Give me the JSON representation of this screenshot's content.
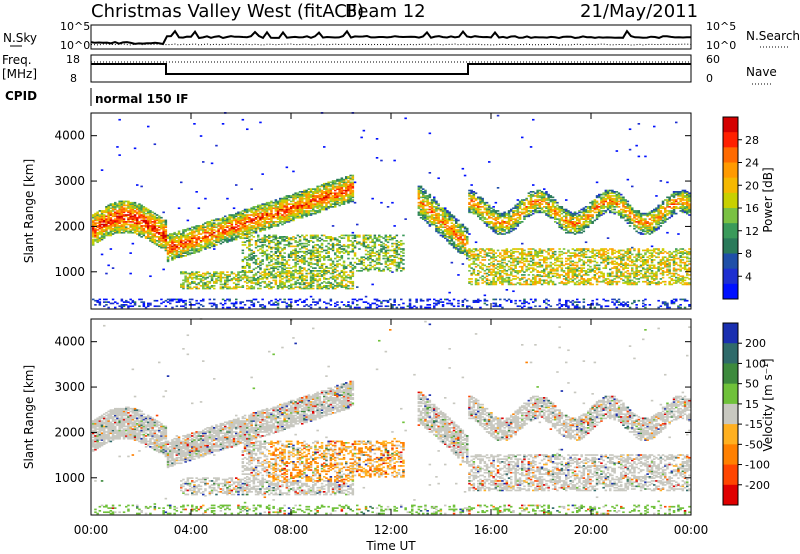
{
  "header": {
    "title": "Christmas Valley West (fitACF)",
    "beam": "Beam 12",
    "date": "21/May/2011"
  },
  "strip_labels": {
    "nsky": "N.Sky",
    "nsearch": "N.Search",
    "freq_top": "Freq.",
    "freq_unit": "[MHz]",
    "nave": "Nave",
    "cpid": "CPID",
    "cpid_value": "normal 150 IF",
    "noise_ticks_left": [
      "10^5",
      "10^0"
    ],
    "noise_ticks_right": [
      "10^5",
      "10^0"
    ],
    "freq_ticks": [
      "18",
      "8"
    ],
    "nave_ticks": [
      "60",
      "0"
    ]
  },
  "chart_data": [
    {
      "type": "heatmap",
      "name": "power-panel",
      "ylabel": "Slant Range [km]",
      "yticks": [
        "1000",
        "2000",
        "3000",
        "4000"
      ],
      "ylim": [
        180,
        4500
      ],
      "colorbar": {
        "label": "Power [dB]",
        "ticks": [
          "28",
          "24",
          "20",
          "16",
          "12",
          "8",
          "4"
        ],
        "colors": [
          "#d40000",
          "#ff2000",
          "#ff6a00",
          "#ff9a00",
          "#f5b800",
          "#c8d000",
          "#7ac143",
          "#3a9a5a",
          "#2a7a5a",
          "#1f4fa8",
          "#1e2fd0",
          "#0010ff"
        ]
      }
    },
    {
      "type": "heatmap",
      "name": "velocity-panel",
      "ylabel": "Slant Range [km]",
      "yticks": [
        "1000",
        "2000",
        "3000",
        "4000"
      ],
      "ylim": [
        180,
        4500
      ],
      "colorbar": {
        "label": "Velocity [m s⁻¹]",
        "ticks": [
          "200",
          "100",
          "50",
          "15",
          "-15",
          "-50",
          "-100",
          "-200"
        ],
        "colors": [
          "#1a2fb0",
          "#2f6a6a",
          "#3d8a3d",
          "#6fc13a",
          "#c8c8c0",
          "#ffb020",
          "#ff8000",
          "#ff4500",
          "#e00000"
        ]
      }
    }
  ],
  "xaxis": {
    "label": "Time UT",
    "ticks": [
      "00:00",
      "04:00",
      "08:00",
      "12:00",
      "16:00",
      "20:00",
      "00:00"
    ]
  }
}
